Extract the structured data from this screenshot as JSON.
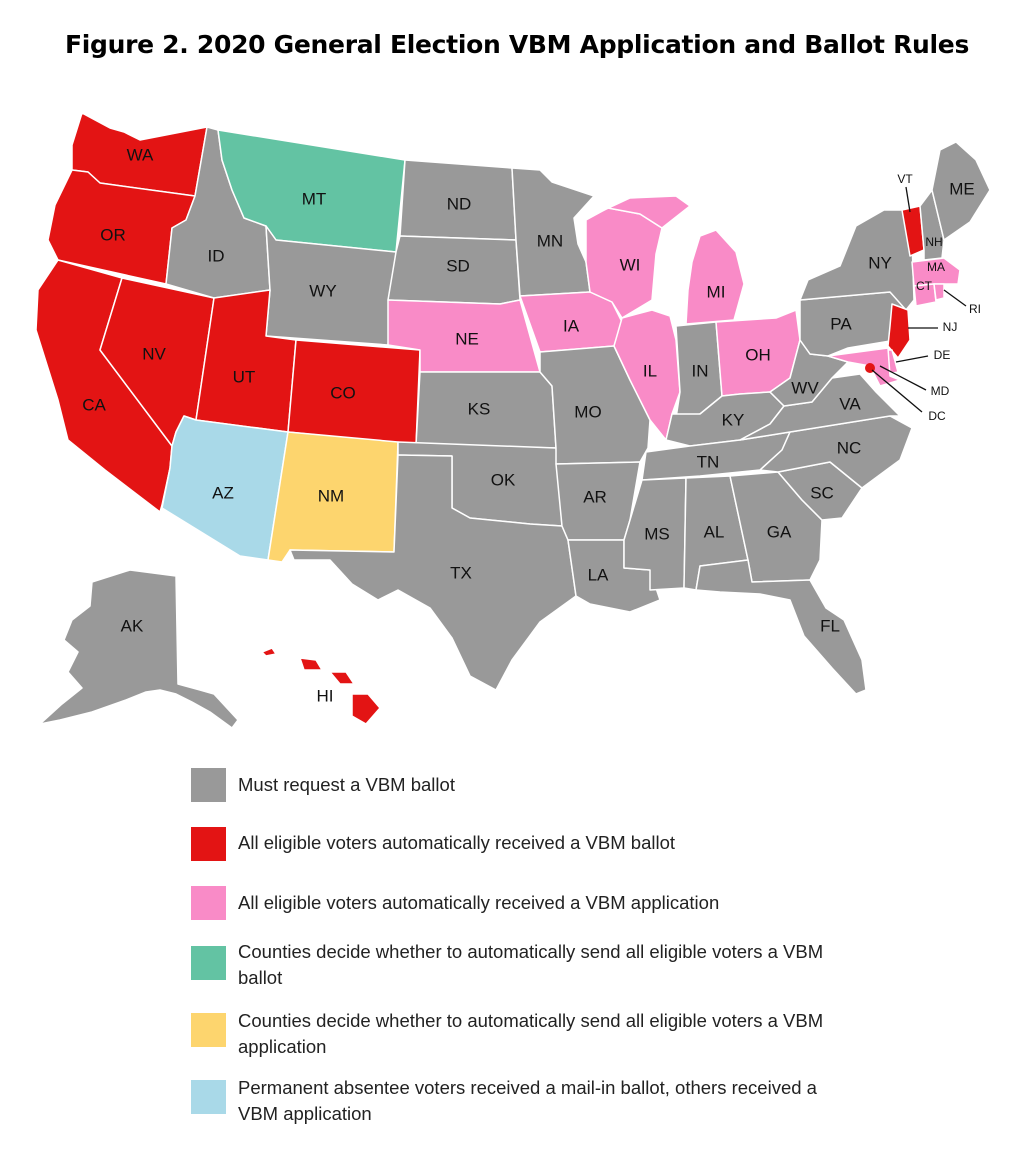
{
  "title": "Figure 2. 2020 General Election VBM Application and Ballot Rules",
  "colors": {
    "must_request": "#999999",
    "auto_ballot": "#e31414",
    "auto_application": "#f98bc7",
    "county_ballot": "#63c3a3",
    "county_application": "#fdd56e",
    "absentee": "#a9d9e8"
  },
  "states": {
    "WA": "WA",
    "OR": "OR",
    "CA": "CA",
    "NV": "NV",
    "ID": "ID",
    "MT": "MT",
    "WY": "WY",
    "UT": "UT",
    "CO": "CO",
    "AZ": "AZ",
    "NM": "NM",
    "ND": "ND",
    "SD": "SD",
    "NE": "NE",
    "KS": "KS",
    "OK": "OK",
    "TX": "TX",
    "MN": "MN",
    "IA": "IA",
    "MO": "MO",
    "AR": "AR",
    "LA": "LA",
    "WI": "WI",
    "IL": "IL",
    "MI": "MI",
    "IN": "IN",
    "OH": "OH",
    "KY": "KY",
    "TN": "TN",
    "MS": "MS",
    "AL": "AL",
    "GA": "GA",
    "FL": "FL",
    "SC": "SC",
    "NC": "NC",
    "VA": "VA",
    "WV": "WV",
    "PA": "PA",
    "NY": "NY",
    "VT": "VT",
    "NH": "NH",
    "ME": "ME",
    "MA": "MA",
    "RI": "RI",
    "CT": "CT",
    "NJ": "NJ",
    "DE": "DE",
    "MD": "MD",
    "DC": "DC",
    "AK": "AK",
    "HI": "HI"
  },
  "legend": [
    {
      "label": "Must request a VBM ballot",
      "color": "#999999"
    },
    {
      "label": "All eligible voters automatically received a VBM ballot",
      "color": "#e31414"
    },
    {
      "label": "All eligible voters automatically received a VBM application",
      "color": "#f98bc7"
    },
    {
      "label": "Counties decide whether to automatically send all eligible voters a VBM ballot",
      "color": "#63c3a3"
    },
    {
      "label": "Counties decide whether to automatically send all eligible voters a VBM application",
      "color": "#fdd56e"
    },
    {
      "label": "Permanent absentee voters received a mail-in ballot, others received a VBM application",
      "color": "#a9d9e8"
    }
  ]
}
